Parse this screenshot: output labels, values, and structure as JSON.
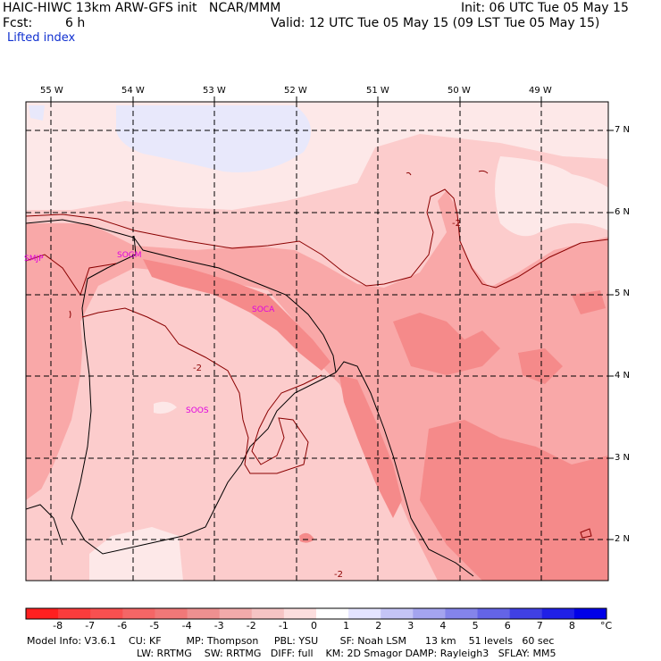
{
  "header": {
    "title": "HAIC-HIWC 13km ARW-GFS init   NCAR/MMM",
    "init": "Init: 06 UTC Tue 05 May 15",
    "fcst_label": "Fcst:",
    "fcst_value": "6 h",
    "valid": "Valid: 12 UTC Tue 05 May 15 (09 LST Tue 05 May 15)",
    "field": "Lifted index"
  },
  "map": {
    "lon_labels": [
      "55 W",
      "54 W",
      "53 W",
      "52 W",
      "51 W",
      "50 W",
      "49 W"
    ],
    "lat_labels": [
      "7 N",
      "6 N",
      "5 N",
      "4 N",
      "3 N",
      "2 N"
    ],
    "stations": [
      "SMJP",
      "SOGM",
      "SOCA",
      "SOOS"
    ],
    "contour_labels": [
      "-2",
      "-2",
      "-2"
    ],
    "colors": {
      "lightest": "#fde8e8",
      "light": "#fccccc",
      "mid": "#f9a8a8",
      "dark": "#f58a8a",
      "cold": "#e8e8fb",
      "station": "#e000e0",
      "contour": "#8a0000"
    }
  },
  "colorbar": {
    "labels": [
      "-8",
      "-7",
      "-6",
      "-5",
      "-4",
      "-3",
      "-2",
      "-1",
      "0",
      "1",
      "2",
      "3",
      "4",
      "5",
      "6",
      "7",
      "8"
    ],
    "unit": "°C",
    "colors": [
      "#ff2020",
      "#fb3c3c",
      "#f85050",
      "#f46666",
      "#f07878",
      "#ee9090",
      "#f2aaaa",
      "#f6c4c4",
      "#fcdede",
      "#ffffff",
      "#e4e4ff",
      "#c4c4f6",
      "#a4a4ef",
      "#8484ea",
      "#6464e6",
      "#4040e4",
      "#2020e6",
      "#0000e8"
    ]
  },
  "model_info": {
    "line1": "Model Info: V3.6.1    CU: KF        MP: Thompson     PBL: YSU       SF: Noah LSM      13 km    51 levels   60 sec",
    "line2": "LW: RRTMG    SW: RRTMG   DIFF: full    KM: 2D Smagor DAMP: Rayleigh3   SFLAY: MM5"
  }
}
